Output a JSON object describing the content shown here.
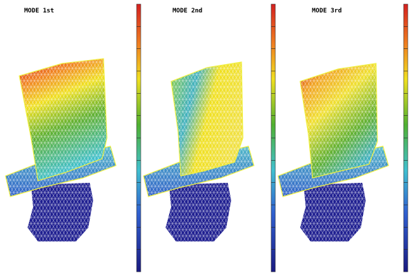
{
  "panels": [
    {
      "title": "MODE 1st"
    },
    {
      "title": "MODE 2nd"
    },
    {
      "title": "MODE 3rd"
    }
  ]
}
